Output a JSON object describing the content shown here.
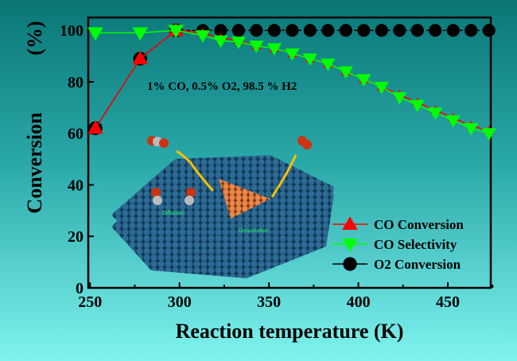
{
  "chart_data": {
    "type": "line",
    "xlabel": "Reaction temperature (K)",
    "ylabel": "Conversion",
    "ylabel_unit": "(%)",
    "xlim": [
      249,
      474
    ],
    "ylim": [
      0,
      105
    ],
    "xticks": [
      250,
      300,
      350,
      400,
      450
    ],
    "yticks": [
      0,
      20,
      40,
      60,
      80,
      100
    ],
    "annotation": "1% CO, 0.5% O2, 98.5 % H2",
    "inset_labels": [
      "Diffusion",
      "Dissociation"
    ],
    "legend_position": "bottom-right",
    "series": [
      {
        "name": "CO Conversion",
        "color": "#ff0000",
        "marker": "triangle-up",
        "x": [
          253,
          278,
          298,
          313,
          323,
          333,
          343,
          353,
          363,
          373,
          383,
          393,
          403,
          413,
          423,
          433,
          443,
          453,
          463,
          473
        ],
        "y": [
          62,
          89,
          100,
          99,
          97,
          96,
          94,
          93,
          91,
          89,
          87,
          84,
          81,
          78,
          75,
          72,
          69,
          66,
          63,
          61
        ]
      },
      {
        "name": "CO Selectivity",
        "color": "#00ff00",
        "marker": "triangle-down",
        "x": [
          253,
          278,
          298,
          313,
          323,
          333,
          343,
          353,
          363,
          373,
          383,
          393,
          403,
          413,
          423,
          433,
          443,
          453,
          463,
          473
        ],
        "y": [
          99,
          99,
          100,
          98,
          96,
          95.5,
          94,
          93,
          91,
          89,
          87,
          84,
          81,
          78,
          74,
          71,
          68,
          65,
          62,
          60
        ]
      },
      {
        "name": "O2  Conversion",
        "color": "#000000",
        "marker": "circle",
        "x": [
          253,
          278,
          298,
          313,
          323,
          333,
          343,
          353,
          363,
          373,
          383,
          393,
          403,
          413,
          423,
          433,
          443,
          453,
          463,
          473
        ],
        "y": [
          62,
          89,
          100,
          100,
          100,
          100,
          100,
          100,
          100,
          100,
          100,
          100,
          100,
          100,
          100,
          100,
          100,
          100,
          100,
          100
        ]
      }
    ]
  }
}
